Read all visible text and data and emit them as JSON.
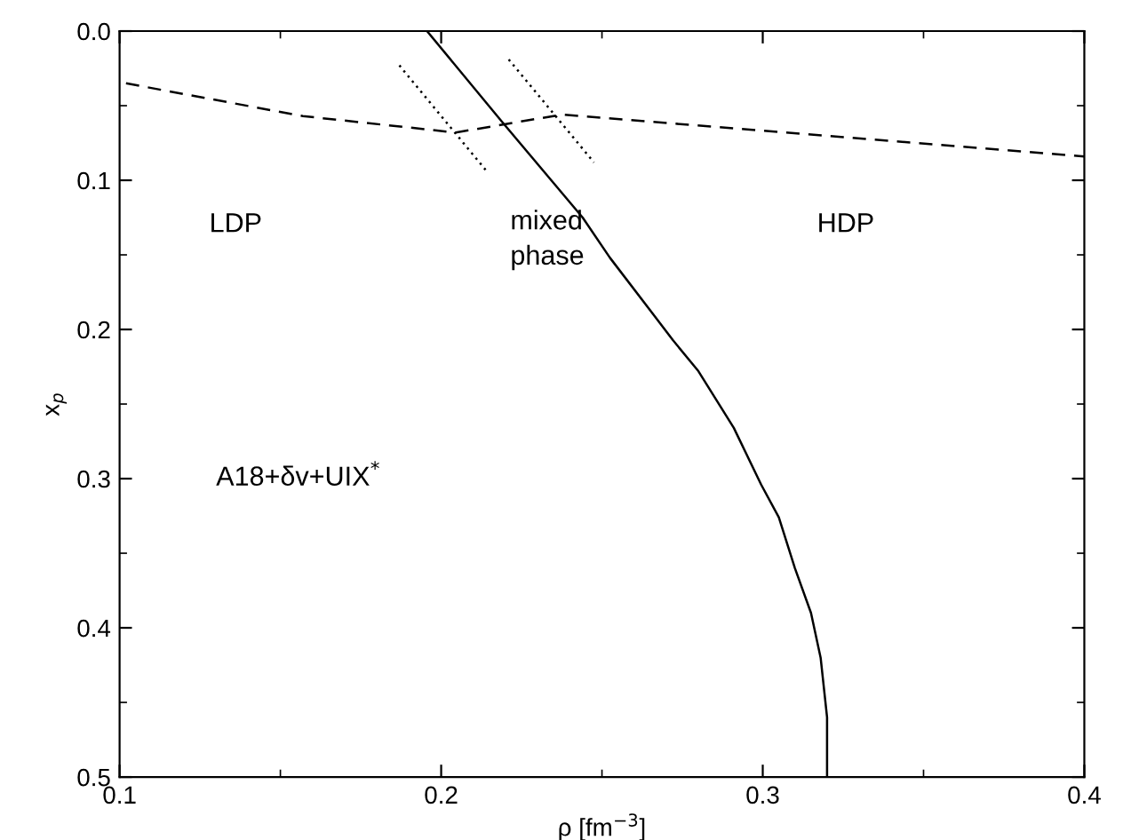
{
  "chart_data": {
    "type": "line",
    "xlabel": "ρ [fm$^{−3}$]",
    "ylabel": "x$_{p}$",
    "xlim": [
      0.1,
      0.4
    ],
    "xticks": [
      0.1,
      0.2,
      0.3,
      0.4
    ],
    "ylim": [
      0.5,
      0.0
    ],
    "yticks": [
      {
        "value": 0.0,
        "label": "0.0"
      },
      0.1,
      0.2,
      0.3,
      0.4,
      0.5
    ],
    "grid": false,
    "legend": false,
    "marker": "none",
    "series": [
      {
        "color": "#000000",
        "line_style": "solid",
        "x": [
          0.1956,
          0.219,
          0.244,
          0.2525,
          0.266,
          0.272,
          0.28,
          0.291,
          0.2995,
          0.305,
          0.31,
          0.315,
          0.318,
          0.32,
          0.32
        ],
        "values": [
          0.0,
          0.061,
          0.125,
          0.152,
          0.19,
          0.207,
          0.228,
          0.266,
          0.304,
          0.326,
          0.36,
          0.39,
          0.42,
          0.46,
          0.5
        ]
      },
      {
        "color": "#000000",
        "line_style": "dashed",
        "x": [
          0.102,
          0.157,
          0.2045,
          0.2375,
          0.4
        ],
        "values": [
          0.035,
          0.057,
          0.068,
          0.056,
          0.084
        ]
      },
      {
        "color": "#000000",
        "line_style": "dotted",
        "x": [
          0.187,
          0.2138
        ],
        "values": [
          0.023,
          0.093
        ]
      },
      {
        "color": "#000000",
        "line_style": "dotted",
        "x": [
          0.221,
          0.2475
        ],
        "values": [
          0.019,
          0.088
        ]
      }
    ],
    "annotations": [
      "LDP",
      "mixed\nphase",
      "HDP",
      "A18+δv+UIX$^{*}$"
    ]
  }
}
